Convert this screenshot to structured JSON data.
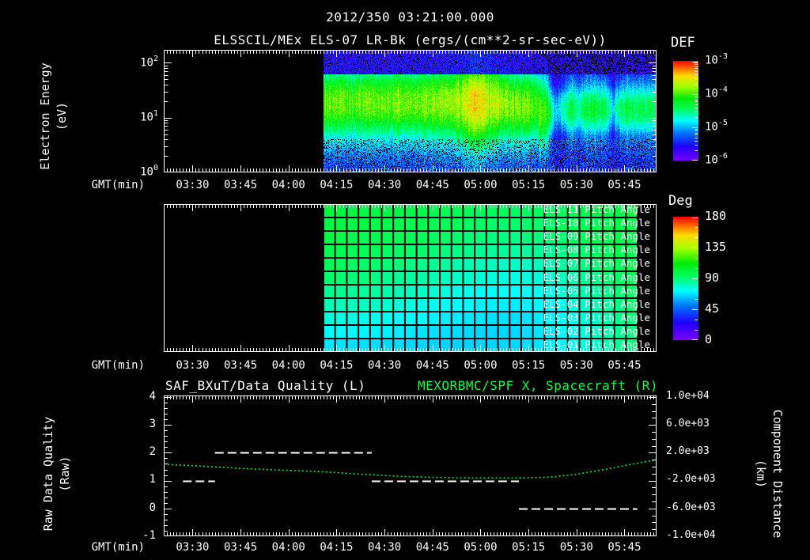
{
  "title": {
    "line1": "2012/350 03:21:00.000",
    "line2": "ELSSCIL/MEx ELS-07 LR-Bk  (ergs/(cm**2-sr-sec-eV))"
  },
  "time_axis": {
    "label": "GMT(min)",
    "ticks": [
      "03:30",
      "03:45",
      "04:00",
      "04:15",
      "04:30",
      "04:45",
      "05:00",
      "05:15",
      "05:30",
      "05:45"
    ]
  },
  "spectrogram_panel": {
    "ylabel_line1": "Electron Energy",
    "ylabel_line2": "(eV)",
    "yticks": [
      "10^2",
      "10^1",
      "10^0"
    ],
    "colorbar_label": "DEF",
    "colorbar_ticks": [
      "10^-3",
      "10^-4",
      "10^-5",
      "10^-6"
    ]
  },
  "pitch_panel": {
    "row_labels": [
      "ELS-11 Pitch Angle",
      "ELS-10 Pitch Angle",
      "ELS-09 Pitch Angle",
      "ELS-08 Pitch Angle",
      "ELS-07 Pitch Angle",
      "ELS-06 Pitch Angle",
      "ELS-05 Pitch Angle",
      "ELS-04 Pitch Angle",
      "ELS-03 Pitch Angle",
      "ELS-02 Pitch Angle",
      "ELS-01 Pitch Angle"
    ],
    "colorbar_label": "Deg",
    "colorbar_ticks": [
      "180",
      "135",
      "90",
      "45",
      "0"
    ]
  },
  "quality_panel": {
    "title_left": "SAF_BXuT/Data Quality (L)",
    "title_right": "MEXORBMC/SPF X, Spacecraft (R)",
    "ylabel_left_line1": "Raw Data Quality",
    "ylabel_left_line2": "(Raw)",
    "ylabel_right_line1": "Component Distance",
    "ylabel_right_line2": "(km)",
    "yticks_left": [
      "4",
      "3",
      "2",
      "1",
      "0",
      "-1"
    ],
    "yticks_right": [
      "1.0e+04",
      "6.0e+03",
      "2.0e+03",
      "-2.0e+03",
      "-6.0e+03",
      "-1.0e+04"
    ]
  },
  "colors": {
    "background": "#000000",
    "foreground": "#ffffff",
    "accent_green": "#00ff44",
    "line_green": "#00e748"
  },
  "chart_data": [
    {
      "type": "heatmap",
      "name": "electron-energy-spectrogram",
      "title": "ELSSCIL/MEx ELS-07 LR-Bk",
      "units": "ergs/(cm**2-sr-sec-eV)",
      "x_range": [
        "03:21",
        "05:54"
      ],
      "data_start": "04:11",
      "data_end": "05:54",
      "y_scale": "log",
      "y_range_ev": [
        1,
        170
      ],
      "c_scale": "log",
      "c_range": [
        1e-06,
        0.001
      ],
      "main_band_center_ev": 19,
      "def_profile": {
        "comment": "peak DEF of main band vs minutes after 03:21",
        "t_min": [
          50,
          60,
          70,
          80,
          89,
          94,
          97,
          100,
          102,
          105,
          108,
          111,
          114,
          117,
          119,
          120.5,
          122,
          124,
          126,
          127.5,
          129,
          131,
          134,
          137,
          139.5,
          140.5,
          142,
          144,
          147,
          150,
          153.5
        ],
        "peak_def": [
          0.0001,
          0.000105,
          0.0001,
          0.000105,
          0.00013,
          0.00018,
          0.00026,
          0.00024,
          0.00018,
          0.00014,
          0.00012,
          0.000105,
          0.0001,
          9e-05,
          8e-05,
          4e-05,
          8e-06,
          1.2e-05,
          2.5e-05,
          4e-05,
          2e-05,
          3.5e-05,
          4e-05,
          3.8e-05,
          1.5e-05,
          8e-06,
          2.5e-05,
          3.5e-05,
          3e-05,
          3.2e-05,
          3e-05
        ]
      }
    },
    {
      "type": "heatmap",
      "name": "pitch-angle-grid",
      "units": "deg",
      "c_range": [
        0,
        180
      ],
      "x_range": [
        "03:21",
        "05:54"
      ],
      "data_start": "04:11",
      "data_end": "05:49",
      "time_samples": [
        "04:11",
        "04:23",
        "04:35",
        "04:48",
        "05:00",
        "05:12",
        "05:24",
        "05:37",
        "05:49"
      ],
      "rows": [
        "ELS-11",
        "ELS-10",
        "ELS-09",
        "ELS-08",
        "ELS-07",
        "ELS-06",
        "ELS-05",
        "ELS-04",
        "ELS-03",
        "ELS-02",
        "ELS-01"
      ],
      "values_deg": [
        [
          100,
          99,
          98,
          96,
          94,
          93,
          94,
          97,
          99
        ],
        [
          99,
          98,
          96,
          94,
          92,
          91,
          92,
          95,
          98
        ],
        [
          98,
          96,
          94,
          92,
          89,
          88,
          90,
          94,
          98
        ],
        [
          96,
          94,
          92,
          89,
          86,
          84,
          87,
          92,
          97
        ],
        [
          94,
          92,
          89,
          85,
          81,
          79,
          83,
          90,
          96
        ],
        [
          91,
          89,
          85,
          81,
          77,
          75,
          79,
          87,
          95
        ],
        [
          87,
          85,
          81,
          77,
          73,
          72,
          76,
          84,
          93
        ],
        [
          82,
          80,
          77,
          73,
          70,
          69,
          73,
          81,
          91
        ],
        [
          77,
          75,
          73,
          70,
          68,
          67,
          71,
          79,
          90
        ],
        [
          72,
          71,
          69,
          67,
          66,
          66,
          70,
          78,
          89
        ],
        [
          68,
          67,
          66,
          65,
          65,
          66,
          70,
          78,
          90
        ]
      ]
    },
    {
      "type": "line",
      "name": "data-quality-and-spacecraft-x",
      "x_range": [
        "03:21",
        "05:54"
      ],
      "series": [
        {
          "name": "SAF_BXuT/Data Quality",
          "axis": "left",
          "style": "white-dashed-steps",
          "y_range": [
            -1,
            4
          ],
          "segments": [
            {
              "start": "03:27",
              "end": "03:37",
              "start_min": 6,
              "end_min": 16,
              "value": 1
            },
            {
              "start": "03:37",
              "end": "04:26",
              "start_min": 16,
              "end_min": 65,
              "value": 2
            },
            {
              "start": "04:26",
              "end": "05:12",
              "start_min": 65,
              "end_min": 111,
              "value": 1
            },
            {
              "start": "05:12",
              "end": "05:49",
              "start_min": 111,
              "end_min": 148,
              "value": 0
            }
          ]
        },
        {
          "name": "MEXORBMC/SPF X, Spacecraft",
          "axis": "right",
          "style": "green-dotted",
          "y_range": [
            -10000,
            10000
          ],
          "t_min": [
            0,
            11,
            23,
            35,
            48,
            60,
            73,
            85,
            97,
            110,
            117,
            122,
            129,
            136,
            144,
            151,
            154
          ],
          "km": [
            340,
            110,
            -230,
            -460,
            -690,
            -1030,
            -1370,
            -1550,
            -1620,
            -1620,
            -1560,
            -1450,
            -1100,
            -550,
            150,
            750,
            950
          ]
        }
      ]
    }
  ]
}
